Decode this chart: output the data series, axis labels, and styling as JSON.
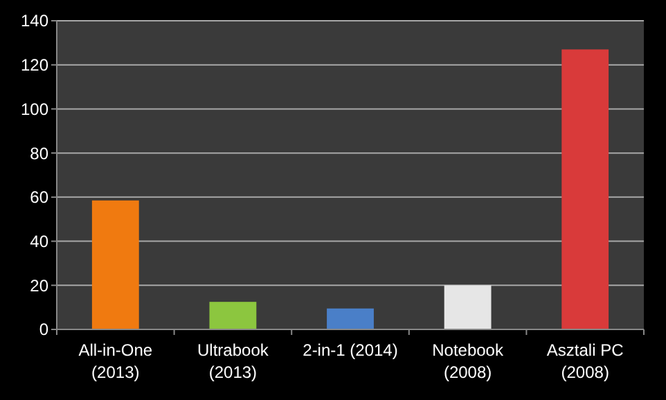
{
  "chart_data": {
    "type": "bar",
    "categories": [
      "All-in-One (2013)",
      "Ultrabook (2013)",
      "2-in-1 (2014)",
      "Notebook (2008)",
      "Asztali PC (2008)"
    ],
    "values": [
      58.5,
      12.5,
      9.5,
      20,
      127
    ],
    "colors": [
      "#f07a10",
      "#8cc63f",
      "#4a7fc8",
      "#e6e6e6",
      "#d93a3a"
    ],
    "ylim": [
      0,
      140
    ],
    "yticks": [
      0,
      20,
      40,
      60,
      80,
      100,
      120,
      140
    ],
    "grid": "y"
  }
}
